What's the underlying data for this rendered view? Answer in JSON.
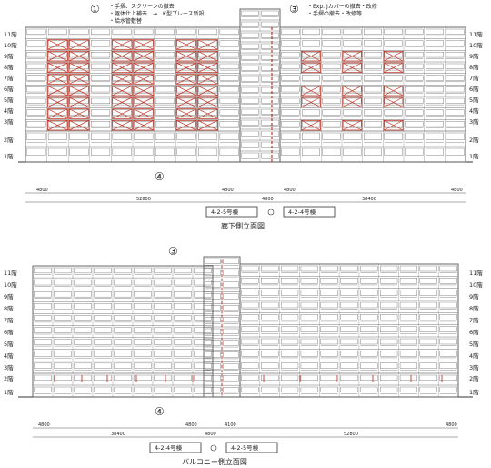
{
  "top": {
    "title": "廊下側立面図",
    "markers": {
      "m1": "①",
      "m3": "③",
      "m4": "④"
    },
    "notes_left": [
      "・手摺、スクリーンの撤去",
      "・躯体仕上補去　→　K型ブレース新設",
      "・給水管敷替"
    ],
    "notes_right": [
      "・Exp. Jカバーの撤去・改修",
      "・手摺の撤去・改修等"
    ],
    "floors_left": [
      "11階",
      "10階",
      "9階",
      "8階",
      "7階",
      "6階",
      "5階",
      "4階",
      "3階",
      "2階",
      "1階"
    ],
    "floors_right": [
      "11階",
      "10階",
      "9階",
      "8階",
      "7階",
      "6階",
      "5階",
      "4階",
      "3階",
      "2階",
      "1階"
    ],
    "dims_row": [
      "4800",
      "4800",
      "4800",
      "4800"
    ],
    "dims_totals": [
      "52800",
      "4800",
      "38400"
    ],
    "building_labels": [
      "4-2-5号棟",
      "4-2-4号棟"
    ]
  },
  "bottom": {
    "title": "バルコニー側立面図",
    "markers": {
      "m3": "③",
      "m4": "④"
    },
    "floors_left": [
      "11階",
      "10階",
      "9階",
      "8階",
      "7階",
      "6階",
      "5階",
      "4階",
      "3階",
      "2階",
      "1階"
    ],
    "floors_right": [
      "11階",
      "10階",
      "9階",
      "8階",
      "7階",
      "6階",
      "5階",
      "4階",
      "3階",
      "2階",
      "1階"
    ],
    "dims_row": [
      "4800",
      "4800",
      "4100",
      "4800"
    ],
    "dims_totals": [
      "38400",
      "4800",
      "52800"
    ],
    "building_labels": [
      "4-2-4号棟",
      "4-2-5号棟"
    ]
  },
  "colors": {
    "line": "#333333",
    "brace": "#c0392b",
    "grid": "#777777"
  }
}
